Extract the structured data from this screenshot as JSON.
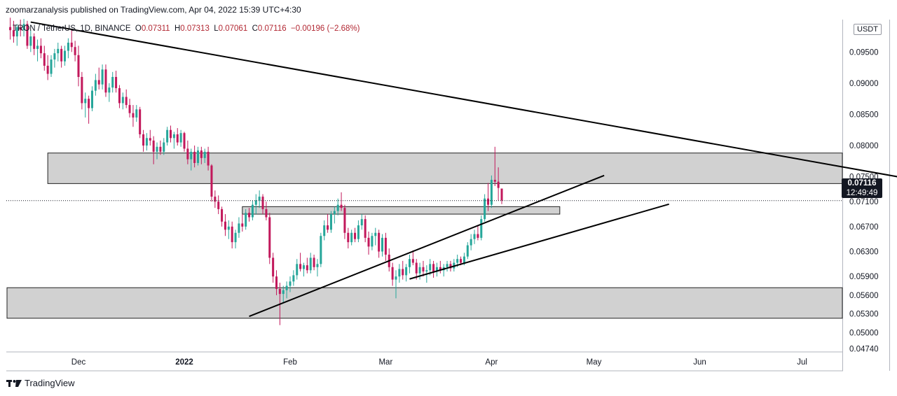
{
  "header": {
    "publisher_line": "zoomarzanalysis published on TradingView.com, Apr 04, 2022 15:39 UTC+4:30"
  },
  "legend": {
    "symbol": "TRON / TetherUS, 1D, BINANCE",
    "open_label": "O",
    "open": "0.07311",
    "high_label": "H",
    "high": "0.07313",
    "low_label": "L",
    "low": "0.07061",
    "close_label": "C",
    "close": "0.07116",
    "change": "−0.00196 (−2.68%)"
  },
  "currency": "USDT",
  "last_price": {
    "price": "0.07116",
    "countdown": "12:49:49",
    "value": 0.07116
  },
  "footer": {
    "brand": "TradingView"
  },
  "colors": {
    "up": "#26a69a",
    "down": "#c2185b",
    "zone_fill": "#d1d1d1",
    "trendline": "#000000",
    "axis_text": "#131722"
  },
  "chart_data": {
    "type": "candlestick",
    "symbol": "TRXUSDT",
    "timeframe": "1D",
    "y_ticks": [
      "0.04740",
      "0.05000",
      "0.05300",
      "0.05600",
      "0.05900",
      "0.06300",
      "0.06700",
      "0.07100",
      "0.07500",
      "0.08000",
      "0.08500",
      "0.09000",
      "0.09500"
    ],
    "x_ticks": [
      "Dec",
      "2022",
      "Feb",
      "Mar",
      "Apr",
      "May",
      "Jun",
      "Jul"
    ],
    "ylim": [
      0.0469,
      0.1002
    ],
    "zones": [
      {
        "from": "2021-11-22",
        "to": "2022-07-31",
        "low": 0.0739,
        "high": 0.0788
      },
      {
        "from": "2022-01-18",
        "to": "2022-04-21",
        "low": 0.069,
        "high": 0.0702
      },
      {
        "from": "2021-10-29",
        "to": "2022-07-31",
        "low": 0.0523,
        "high": 0.0572
      }
    ],
    "trendlines": [
      {
        "from": [
          "2021-11-17",
          0.0998
        ],
        "to": [
          "2022-07-31",
          0.0748
        ]
      },
      {
        "from": [
          "2022-01-20",
          0.0526
        ],
        "to": [
          "2022-05-04",
          0.0752
        ]
      },
      {
        "from": [
          "2022-03-08",
          0.0586
        ],
        "to": [
          "2022-05-23",
          0.0706
        ]
      }
    ],
    "candles": [
      [
        "2021-11-11",
        0.099,
        0.1005,
        0.097,
        0.0985
      ],
      [
        "2021-11-12",
        0.0985,
        0.1,
        0.0965,
        0.0975
      ],
      [
        "2021-11-13",
        0.0975,
        0.0995,
        0.096,
        0.099
      ],
      [
        "2021-11-14",
        0.099,
        0.1002,
        0.0975,
        0.0985
      ],
      [
        "2021-11-15",
        0.0985,
        0.1003,
        0.0975,
        0.0995
      ],
      [
        "2021-11-16",
        0.0995,
        0.1,
        0.0955,
        0.096
      ],
      [
        "2021-11-17",
        0.096,
        0.0985,
        0.095,
        0.0975
      ],
      [
        "2021-11-18",
        0.0975,
        0.098,
        0.0945,
        0.0955
      ],
      [
        "2021-11-19",
        0.0955,
        0.097,
        0.0935,
        0.096
      ],
      [
        "2021-11-20",
        0.096,
        0.0972,
        0.094,
        0.0948
      ],
      [
        "2021-11-21",
        0.0948,
        0.096,
        0.092,
        0.0928
      ],
      [
        "2021-11-22",
        0.0928,
        0.0945,
        0.0905,
        0.0915
      ],
      [
        "2021-11-23",
        0.0915,
        0.0945,
        0.091,
        0.0938
      ],
      [
        "2021-11-24",
        0.0938,
        0.0955,
        0.0925,
        0.0948
      ],
      [
        "2021-11-25",
        0.0948,
        0.0965,
        0.0935,
        0.0955
      ],
      [
        "2021-11-26",
        0.0955,
        0.096,
        0.0925,
        0.0935
      ],
      [
        "2021-11-27",
        0.0935,
        0.096,
        0.0928,
        0.0952
      ],
      [
        "2021-11-28",
        0.0952,
        0.0972,
        0.094,
        0.0965
      ],
      [
        "2021-11-29",
        0.0965,
        0.0985,
        0.095,
        0.0958
      ],
      [
        "2021-11-30",
        0.0958,
        0.0968,
        0.0935,
        0.0945
      ],
      [
        "2021-12-01",
        0.0945,
        0.096,
        0.0895,
        0.091
      ],
      [
        "2021-12-02",
        0.091,
        0.0918,
        0.0858,
        0.0868
      ],
      [
        "2021-12-03",
        0.0868,
        0.0885,
        0.0845,
        0.0875
      ],
      [
        "2021-12-04",
        0.0875,
        0.088,
        0.0835,
        0.086
      ],
      [
        "2021-12-05",
        0.086,
        0.0895,
        0.0855,
        0.0888
      ],
      [
        "2021-12-06",
        0.0888,
        0.0915,
        0.088,
        0.0905
      ],
      [
        "2021-12-07",
        0.0905,
        0.0925,
        0.089,
        0.0898
      ],
      [
        "2021-12-08",
        0.0898,
        0.093,
        0.089,
        0.0922
      ],
      [
        "2021-12-09",
        0.0922,
        0.093,
        0.0878,
        0.0885
      ],
      [
        "2021-12-10",
        0.0885,
        0.09,
        0.087,
        0.0893
      ],
      [
        "2021-12-11",
        0.0893,
        0.0918,
        0.0885,
        0.091
      ],
      [
        "2021-12-12",
        0.091,
        0.092,
        0.0885,
        0.0892
      ],
      [
        "2021-12-13",
        0.0892,
        0.0897,
        0.086,
        0.0868
      ],
      [
        "2021-12-14",
        0.0868,
        0.0885,
        0.0858,
        0.0878
      ],
      [
        "2021-12-15",
        0.0878,
        0.089,
        0.086,
        0.0865
      ],
      [
        "2021-12-16",
        0.0865,
        0.0875,
        0.0845,
        0.0852
      ],
      [
        "2021-12-17",
        0.0852,
        0.0865,
        0.083,
        0.0845
      ],
      [
        "2021-12-18",
        0.0845,
        0.0865,
        0.0838,
        0.0858
      ],
      [
        "2021-12-19",
        0.0858,
        0.0862,
        0.0812,
        0.0818
      ],
      [
        "2021-12-20",
        0.0818,
        0.0825,
        0.079,
        0.08
      ],
      [
        "2021-12-21",
        0.08,
        0.082,
        0.0792,
        0.0812
      ],
      [
        "2021-12-22",
        0.0812,
        0.0825,
        0.08,
        0.0808
      ],
      [
        "2021-12-23",
        0.0808,
        0.0815,
        0.077,
        0.079
      ],
      [
        "2021-12-24",
        0.079,
        0.0805,
        0.0778,
        0.0798
      ],
      [
        "2021-12-25",
        0.0798,
        0.0808,
        0.0785,
        0.079
      ],
      [
        "2021-12-26",
        0.079,
        0.0812,
        0.0785,
        0.0805
      ],
      [
        "2021-12-27",
        0.0805,
        0.083,
        0.08,
        0.0825
      ],
      [
        "2021-12-28",
        0.0825,
        0.0832,
        0.0805,
        0.0812
      ],
      [
        "2021-12-29",
        0.0812,
        0.0822,
        0.0795,
        0.0818
      ],
      [
        "2021-12-30",
        0.0818,
        0.0828,
        0.08,
        0.0805
      ],
      [
        "2021-12-31",
        0.0805,
        0.0825,
        0.0798,
        0.082
      ],
      [
        "2022-01-01",
        0.082,
        0.0822,
        0.079,
        0.0795
      ],
      [
        "2022-01-02",
        0.0795,
        0.0808,
        0.077,
        0.0778
      ],
      [
        "2022-01-03",
        0.0778,
        0.0795,
        0.076,
        0.079
      ],
      [
        "2022-01-04",
        0.079,
        0.08,
        0.0765,
        0.0772
      ],
      [
        "2022-01-05",
        0.0772,
        0.0798,
        0.0768,
        0.0792
      ],
      [
        "2022-01-06",
        0.0792,
        0.0798,
        0.077,
        0.078
      ],
      [
        "2022-01-07",
        0.078,
        0.0795,
        0.0772,
        0.079
      ],
      [
        "2022-01-08",
        0.079,
        0.0798,
        0.076,
        0.0768
      ],
      [
        "2022-01-09",
        0.0768,
        0.077,
        0.071,
        0.0718
      ],
      [
        "2022-01-10",
        0.0718,
        0.0728,
        0.07,
        0.071
      ],
      [
        "2022-01-11",
        0.071,
        0.072,
        0.069,
        0.0698
      ],
      [
        "2022-01-12",
        0.0698,
        0.0702,
        0.067,
        0.0678
      ],
      [
        "2022-01-13",
        0.0678,
        0.069,
        0.0655,
        0.0665
      ],
      [
        "2022-01-14",
        0.0665,
        0.068,
        0.065,
        0.067
      ],
      [
        "2022-01-15",
        0.067,
        0.0678,
        0.0635,
        0.0645
      ],
      [
        "2022-01-16",
        0.0645,
        0.0665,
        0.0635,
        0.066
      ],
      [
        "2022-01-17",
        0.066,
        0.0685,
        0.0652,
        0.0675
      ],
      [
        "2022-01-18",
        0.0675,
        0.069,
        0.0662,
        0.067
      ],
      [
        "2022-01-19",
        0.067,
        0.0698,
        0.0665,
        0.0692
      ],
      [
        "2022-01-20",
        0.0692,
        0.07,
        0.0678,
        0.0685
      ],
      [
        "2022-01-21",
        0.0685,
        0.0712,
        0.068,
        0.0705
      ],
      [
        "2022-01-22",
        0.0705,
        0.0722,
        0.069,
        0.0712
      ],
      [
        "2022-01-23",
        0.0712,
        0.0728,
        0.07,
        0.0718
      ],
      [
        "2022-01-24",
        0.0718,
        0.0722,
        0.069,
        0.0698
      ],
      [
        "2022-01-25",
        0.0698,
        0.071,
        0.068,
        0.0685
      ],
      [
        "2022-01-26",
        0.0685,
        0.0692,
        0.061,
        0.062
      ],
      [
        "2022-01-27",
        0.062,
        0.0628,
        0.058,
        0.059
      ],
      [
        "2022-01-28",
        0.059,
        0.06,
        0.056,
        0.057
      ],
      [
        "2022-01-29",
        0.057,
        0.058,
        0.0512,
        0.0562
      ],
      [
        "2022-01-30",
        0.0562,
        0.0575,
        0.0548,
        0.0568
      ],
      [
        "2022-01-31",
        0.0568,
        0.0582,
        0.0555,
        0.0575
      ],
      [
        "2022-02-01",
        0.0575,
        0.059,
        0.0565,
        0.0582
      ],
      [
        "2022-02-02",
        0.0582,
        0.06,
        0.0575,
        0.0592
      ],
      [
        "2022-02-03",
        0.0592,
        0.0618,
        0.0585,
        0.061
      ],
      [
        "2022-02-04",
        0.061,
        0.0628,
        0.0598,
        0.0602
      ],
      [
        "2022-02-05",
        0.0602,
        0.0612,
        0.059,
        0.0608
      ],
      [
        "2022-02-06",
        0.0608,
        0.062,
        0.0595,
        0.06
      ],
      [
        "2022-02-07",
        0.06,
        0.0628,
        0.0595,
        0.062
      ],
      [
        "2022-02-08",
        0.062,
        0.0625,
        0.06,
        0.0605
      ],
      [
        "2022-02-09",
        0.0605,
        0.0618,
        0.059,
        0.061
      ],
      [
        "2022-02-10",
        0.061,
        0.066,
        0.0605,
        0.0655
      ],
      [
        "2022-02-11",
        0.0655,
        0.068,
        0.0648,
        0.0672
      ],
      [
        "2022-02-12",
        0.0672,
        0.069,
        0.066,
        0.0665
      ],
      [
        "2022-02-13",
        0.0665,
        0.0695,
        0.066,
        0.069
      ],
      [
        "2022-02-14",
        0.069,
        0.0702,
        0.0675,
        0.0695
      ],
      [
        "2022-02-15",
        0.0695,
        0.0715,
        0.0688,
        0.0705
      ],
      [
        "2022-02-16",
        0.0705,
        0.0725,
        0.0695,
        0.07
      ],
      [
        "2022-02-17",
        0.07,
        0.0705,
        0.065,
        0.066
      ],
      [
        "2022-02-18",
        0.066,
        0.0668,
        0.0635,
        0.0645
      ],
      [
        "2022-02-19",
        0.0645,
        0.0665,
        0.064,
        0.066
      ],
      [
        "2022-02-20",
        0.066,
        0.0668,
        0.0645,
        0.065
      ],
      [
        "2022-02-21",
        0.065,
        0.068,
        0.0645,
        0.0672
      ],
      [
        "2022-02-22",
        0.0672,
        0.069,
        0.0665,
        0.0682
      ],
      [
        "2022-02-23",
        0.0682,
        0.0688,
        0.0645,
        0.0652
      ],
      [
        "2022-02-24",
        0.0652,
        0.0662,
        0.0625,
        0.0638
      ],
      [
        "2022-02-25",
        0.0638,
        0.066,
        0.0632,
        0.0655
      ],
      [
        "2022-02-26",
        0.0655,
        0.0668,
        0.064,
        0.066
      ],
      [
        "2022-02-27",
        0.066,
        0.0665,
        0.062,
        0.063
      ],
      [
        "2022-02-28",
        0.063,
        0.0658,
        0.0622,
        0.0652
      ],
      [
        "2022-03-01",
        0.0652,
        0.066,
        0.0615,
        0.0625
      ],
      [
        "2022-03-02",
        0.0625,
        0.0635,
        0.0598,
        0.0605
      ],
      [
        "2022-03-03",
        0.0605,
        0.0612,
        0.0575,
        0.0585
      ],
      [
        "2022-03-04",
        0.0585,
        0.06,
        0.0555,
        0.059
      ],
      [
        "2022-03-05",
        0.059,
        0.061,
        0.058,
        0.0602
      ],
      [
        "2022-03-06",
        0.0602,
        0.0615,
        0.0585,
        0.0592
      ],
      [
        "2022-03-07",
        0.0592,
        0.061,
        0.0582,
        0.0605
      ],
      [
        "2022-03-08",
        0.0605,
        0.0625,
        0.0595,
        0.0618
      ],
      [
        "2022-03-09",
        0.0618,
        0.0632,
        0.0608,
        0.0612
      ],
      [
        "2022-03-10",
        0.0612,
        0.0618,
        0.0585,
        0.0595
      ],
      [
        "2022-03-11",
        0.0595,
        0.0612,
        0.0585,
        0.0605
      ],
      [
        "2022-03-12",
        0.0605,
        0.0615,
        0.059,
        0.0598
      ],
      [
        "2022-03-13",
        0.0598,
        0.0608,
        0.058,
        0.06
      ],
      [
        "2022-03-14",
        0.06,
        0.0618,
        0.0592,
        0.061
      ],
      [
        "2022-03-15",
        0.061,
        0.0615,
        0.0588,
        0.0598
      ],
      [
        "2022-03-16",
        0.0598,
        0.0612,
        0.059,
        0.0605
      ],
      [
        "2022-03-17",
        0.0605,
        0.0615,
        0.0595,
        0.06
      ],
      [
        "2022-03-18",
        0.06,
        0.061,
        0.059,
        0.0605
      ],
      [
        "2022-03-19",
        0.0605,
        0.0615,
        0.0598,
        0.061
      ],
      [
        "2022-03-20",
        0.061,
        0.0615,
        0.0598,
        0.0603
      ],
      [
        "2022-03-21",
        0.0603,
        0.0618,
        0.0598,
        0.0612
      ],
      [
        "2022-03-22",
        0.0612,
        0.0625,
        0.0605,
        0.0618
      ],
      [
        "2022-03-23",
        0.0618,
        0.0622,
        0.0608,
        0.0612
      ],
      [
        "2022-03-24",
        0.0612,
        0.0628,
        0.0608,
        0.0622
      ],
      [
        "2022-03-25",
        0.0622,
        0.0645,
        0.0618,
        0.064
      ],
      [
        "2022-03-26",
        0.064,
        0.0658,
        0.0632,
        0.065
      ],
      [
        "2022-03-27",
        0.065,
        0.0665,
        0.0642,
        0.0658
      ],
      [
        "2022-03-28",
        0.0658,
        0.0672,
        0.0648,
        0.0652
      ],
      [
        "2022-03-29",
        0.0652,
        0.0688,
        0.0648,
        0.0682
      ],
      [
        "2022-03-30",
        0.0682,
        0.0722,
        0.0678,
        0.0715
      ],
      [
        "2022-03-31",
        0.0715,
        0.074,
        0.0695,
        0.0705
      ],
      [
        "2022-04-01",
        0.0705,
        0.0752,
        0.07,
        0.0745
      ],
      [
        "2022-04-02",
        0.0745,
        0.0798,
        0.0735,
        0.0742
      ],
      [
        "2022-04-03",
        0.0742,
        0.0765,
        0.0712,
        0.0732
      ],
      [
        "2022-04-04",
        0.0731,
        0.0731,
        0.0706,
        0.0712
      ]
    ]
  }
}
